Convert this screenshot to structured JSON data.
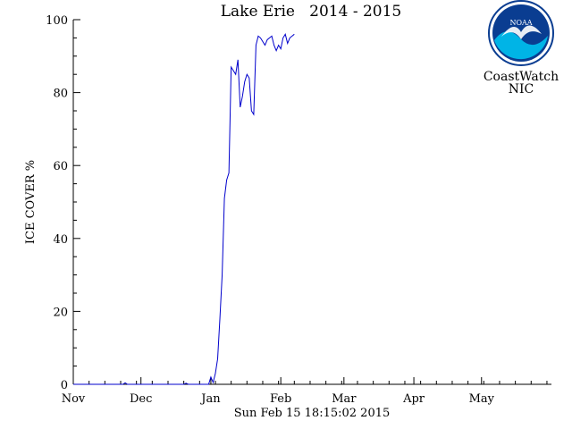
{
  "chart_data": {
    "type": "line",
    "title": "Lake Erie   2014 - 2015",
    "ylabel": "ICE COVER %",
    "xlabel": "Sun Feb 15 18:15:02 2015",
    "ylim": [
      0,
      100
    ],
    "yticks": [
      0,
      20,
      40,
      60,
      80,
      100
    ],
    "xlim": [
      "2014-11-01",
      "2015-06-01"
    ],
    "month_ticks": [
      {
        "label": "Nov",
        "date": "2014-11-01"
      },
      {
        "label": "Dec",
        "date": "2014-12-01"
      },
      {
        "label": "Jan",
        "date": "2015-01-01"
      },
      {
        "label": "Feb",
        "date": "2015-02-01"
      },
      {
        "label": "Mar",
        "date": "2015-03-01"
      },
      {
        "label": "Apr",
        "date": "2015-04-01"
      },
      {
        "label": "May",
        "date": "2015-05-01"
      }
    ],
    "line_color": "#0000cc",
    "series": [
      {
        "points": [
          [
            "2014-11-01",
            0
          ],
          [
            "2014-11-23",
            0
          ],
          [
            "2014-11-24",
            0.4
          ],
          [
            "2014-11-25",
            0
          ],
          [
            "2014-12-20",
            0
          ],
          [
            "2014-12-21",
            0.3
          ],
          [
            "2014-12-22",
            0
          ],
          [
            "2014-12-29",
            0
          ],
          [
            "2014-12-31",
            0
          ],
          [
            "2015-01-01",
            2
          ],
          [
            "2015-01-02",
            0.5
          ],
          [
            "2015-01-03",
            3
          ],
          [
            "2015-01-04",
            7
          ],
          [
            "2015-01-05",
            18
          ],
          [
            "2015-01-06",
            30
          ],
          [
            "2015-01-07",
            51
          ],
          [
            "2015-01-08",
            56
          ],
          [
            "2015-01-09",
            58
          ],
          [
            "2015-01-10",
            87
          ],
          [
            "2015-01-11",
            86
          ],
          [
            "2015-01-12",
            85
          ],
          [
            "2015-01-13",
            89
          ],
          [
            "2015-01-14",
            76
          ],
          [
            "2015-01-15",
            79
          ],
          [
            "2015-01-16",
            83
          ],
          [
            "2015-01-17",
            85
          ],
          [
            "2015-01-18",
            84
          ],
          [
            "2015-01-19",
            75
          ],
          [
            "2015-01-20",
            74
          ],
          [
            "2015-01-21",
            93
          ],
          [
            "2015-01-22",
            95.5
          ],
          [
            "2015-01-23",
            95
          ],
          [
            "2015-01-24",
            94
          ],
          [
            "2015-01-25",
            93
          ],
          [
            "2015-01-26",
            94.5
          ],
          [
            "2015-01-27",
            95
          ],
          [
            "2015-01-28",
            95.5
          ],
          [
            "2015-01-29",
            93
          ],
          [
            "2015-01-30",
            91.5
          ],
          [
            "2015-01-31",
            93
          ],
          [
            "2015-02-01",
            92
          ],
          [
            "2015-02-02",
            95
          ],
          [
            "2015-02-03",
            96
          ],
          [
            "2015-02-04",
            93.5
          ],
          [
            "2015-02-05",
            95
          ],
          [
            "2015-02-06",
            95.5
          ],
          [
            "2015-02-07",
            96
          ]
        ]
      }
    ]
  },
  "logo": {
    "agency_text": "NOAA",
    "caption_line1": "CoastWatch",
    "caption_line2": "NIC",
    "colors": {
      "ring": "#0a3d91",
      "gull": "#1c5fc0",
      "wave": "#00b4e6"
    }
  }
}
